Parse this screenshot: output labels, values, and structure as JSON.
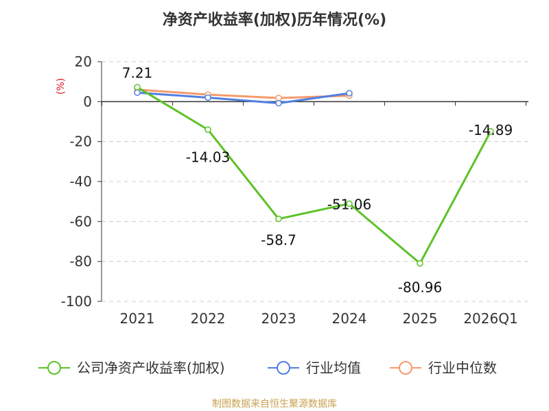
{
  "chart_data": {
    "type": "line",
    "title": "净资产收益率(加权)历年情况(%)",
    "unit_label": "(%)",
    "categories": [
      "2021",
      "2022",
      "2023",
      "2024",
      "2025",
      "2026Q1"
    ],
    "ylim": [
      -100,
      20
    ],
    "yticks": [
      20,
      0,
      -20,
      -40,
      -60,
      -80,
      -100
    ],
    "grid": true,
    "legend_position": "bottom",
    "series": [
      {
        "name": "公司净资产收益率(加权)",
        "color": "#5bc227",
        "values": [
          7.21,
          -14.03,
          -58.7,
          -51.06,
          -80.96,
          -14.89
        ],
        "labels": [
          "7.21",
          "-14.03",
          "-58.7",
          "-51.06",
          "-80.96",
          "-14.89"
        ]
      },
      {
        "name": "行业均值",
        "color": "#4f7fe0",
        "values": [
          4.5,
          2.0,
          -0.8,
          4.2,
          null,
          null
        ]
      },
      {
        "name": "行业中位数",
        "color": "#f59a6c",
        "values": [
          6.0,
          3.5,
          1.8,
          3.0,
          null,
          null
        ]
      }
    ]
  },
  "source": "制图数据来自恒生聚源数据库"
}
